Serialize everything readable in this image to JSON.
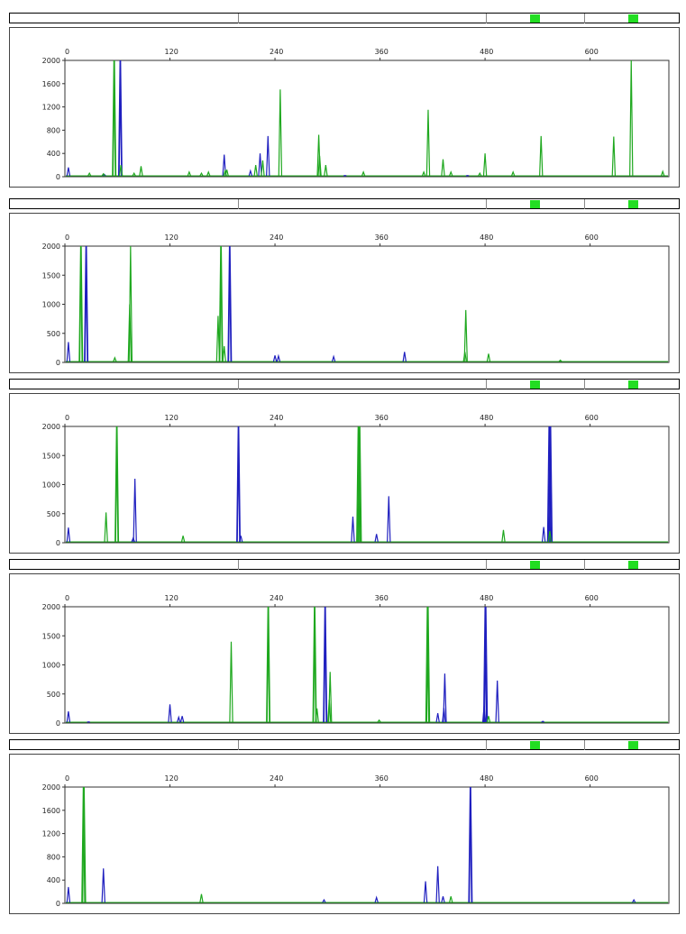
{
  "colors": {
    "blue": "#1f1fbf",
    "green": "#1fa81f",
    "marker": "#22dd22"
  },
  "header": {
    "marker_color": "#22dd22"
  },
  "chart_data": [
    {
      "type": "line",
      "xlim": [
        0,
        690
      ],
      "ylim": [
        0,
        2000
      ],
      "x_ticks": [
        "0",
        "120",
        "240",
        "360",
        "480",
        "600"
      ],
      "y_ticks": [
        "0",
        "400",
        "800",
        "1200",
        "1600",
        "2000"
      ],
      "series": [
        {
          "color": "blue",
          "peaks": [
            [
              4,
              160
            ],
            [
              45,
              40
            ],
            [
              63,
              2000
            ],
            [
              63.6,
              2000
            ],
            [
              182,
              380
            ],
            [
              212,
              100
            ],
            [
              223,
              400
            ],
            [
              232,
              700
            ],
            [
              320,
              20
            ],
            [
              460,
              20
            ]
          ]
        },
        {
          "color": "green",
          "peaks": [
            [
              28,
              60
            ],
            [
              44,
              50
            ],
            [
              56,
              2000
            ],
            [
              56.6,
              2000
            ],
            [
              64,
              200
            ],
            [
              79,
              60
            ],
            [
              87,
              180
            ],
            [
              142,
              80
            ],
            [
              156,
              60
            ],
            [
              164,
              80
            ],
            [
              183,
              100
            ],
            [
              185,
              120
            ],
            [
              218,
              200
            ],
            [
              226,
              280
            ],
            [
              246,
              1500
            ],
            [
              290,
              720
            ],
            [
              291,
              360
            ],
            [
              298,
              200
            ],
            [
              341,
              80
            ],
            [
              410,
              80
            ],
            [
              415,
              1150
            ],
            [
              432,
              300
            ],
            [
              441,
              80
            ],
            [
              474,
              60
            ],
            [
              480,
              400
            ],
            [
              512,
              80
            ],
            [
              544,
              700
            ],
            [
              627,
              690
            ],
            [
              647,
              2000
            ],
            [
              683,
              90
            ]
          ]
        }
      ]
    },
    {
      "type": "line",
      "xlim": [
        0,
        690
      ],
      "ylim": [
        0,
        2000
      ],
      "x_ticks": [
        "0",
        "120",
        "240",
        "360",
        "480",
        "600"
      ],
      "y_ticks": [
        "0",
        "500",
        "1000",
        "1500",
        "2000"
      ],
      "series": [
        {
          "color": "blue",
          "peaks": [
            [
              4,
              350
            ],
            [
              24,
              2000
            ],
            [
              24.6,
              2000
            ],
            [
              188,
              2000
            ],
            [
              188.6,
              2000
            ],
            [
              240,
              120
            ],
            [
              244,
              110
            ],
            [
              307,
              100
            ],
            [
              388,
              180
            ]
          ]
        },
        {
          "color": "green",
          "peaks": [
            [
              18,
              2000
            ],
            [
              18.6,
              2000
            ],
            [
              57,
              80
            ],
            [
              74,
              1000
            ],
            [
              75,
              2000
            ],
            [
              175,
              800
            ],
            [
              178,
              2000
            ],
            [
              178.6,
              2000
            ],
            [
              182,
              280
            ],
            [
              458,
              900
            ],
            [
              457,
              180
            ],
            [
              484,
              150
            ],
            [
              566,
              40
            ]
          ]
        }
      ]
    },
    {
      "type": "line",
      "xlim": [
        0,
        690
      ],
      "ylim": [
        0,
        2000
      ],
      "x_ticks": [
        "0",
        "120",
        "240",
        "360",
        "480",
        "600"
      ],
      "y_ticks": [
        "0",
        "500",
        "1000",
        "1500",
        "2000"
      ],
      "series": [
        {
          "color": "blue",
          "peaks": [
            [
              4,
              260
            ],
            [
              80,
              1100
            ],
            [
              78,
              80
            ],
            [
              198,
              2000
            ],
            [
              198.6,
              2000
            ],
            [
              201,
              120
            ],
            [
              329,
              450
            ],
            [
              356,
              150
            ],
            [
              370,
              800
            ],
            [
              547,
              270
            ],
            [
              553,
              2000
            ],
            [
              554,
              2000
            ],
            [
              555,
              2000
            ]
          ]
        },
        {
          "color": "green",
          "peaks": [
            [
              47,
              520
            ],
            [
              59,
              2000
            ],
            [
              59.6,
              2000
            ],
            [
              135,
              120
            ],
            [
              335,
              2000
            ],
            [
              336,
              2000
            ],
            [
              337,
              2000
            ],
            [
              501,
              220
            ],
            [
              554,
              200
            ]
          ]
        }
      ]
    },
    {
      "type": "line",
      "xlim": [
        0,
        690
      ],
      "ylim": [
        0,
        2000
      ],
      "x_ticks": [
        "0",
        "120",
        "240",
        "360",
        "480",
        "600"
      ],
      "y_ticks": [
        "0",
        "500",
        "1000",
        "1500",
        "2000"
      ],
      "series": [
        {
          "color": "blue",
          "peaks": [
            [
              4,
              200
            ],
            [
              27,
              20
            ],
            [
              120,
              320
            ],
            [
              130,
              100
            ],
            [
              134,
              120
            ],
            [
              297,
              2000
            ],
            [
              297.6,
              2000
            ],
            [
              426,
              170
            ],
            [
              433,
              260
            ],
            [
              434,
              850
            ],
            [
              479,
              300
            ],
            [
              480,
              2000
            ],
            [
              481,
              2000
            ],
            [
              494,
              730
            ],
            [
              546,
              30
            ]
          ]
        },
        {
          "color": "green",
          "peaks": [
            [
              190,
              1400
            ],
            [
              232,
              2000
            ],
            [
              232.6,
              2000
            ],
            [
              285,
              2000
            ],
            [
              285.6,
              2000
            ],
            [
              288,
              250
            ],
            [
              303,
              880
            ],
            [
              302,
              400
            ],
            [
              359,
              50
            ],
            [
              414,
              2000
            ],
            [
              415,
              2000
            ],
            [
              484,
              120
            ]
          ]
        }
      ]
    },
    {
      "type": "line",
      "xlim": [
        0,
        690
      ],
      "ylim": [
        0,
        2000
      ],
      "x_ticks": [
        "0",
        "120",
        "240",
        "360",
        "480",
        "600"
      ],
      "y_ticks": [
        "0",
        "400",
        "800",
        "1200",
        "1600",
        "2000"
      ],
      "series": [
        {
          "color": "blue",
          "peaks": [
            [
              4,
              280
            ],
            [
              44,
              600
            ],
            [
              296,
              60
            ],
            [
              356,
              100
            ],
            [
              412,
              380
            ],
            [
              426,
              640
            ],
            [
              432,
              120
            ],
            [
              463,
              2000
            ],
            [
              463.6,
              2000
            ],
            [
              650,
              60
            ]
          ]
        },
        {
          "color": "green",
          "peaks": [
            [
              21,
              2000
            ],
            [
              22,
              2000
            ],
            [
              156,
              160
            ],
            [
              441,
              120
            ]
          ]
        }
      ]
    }
  ]
}
